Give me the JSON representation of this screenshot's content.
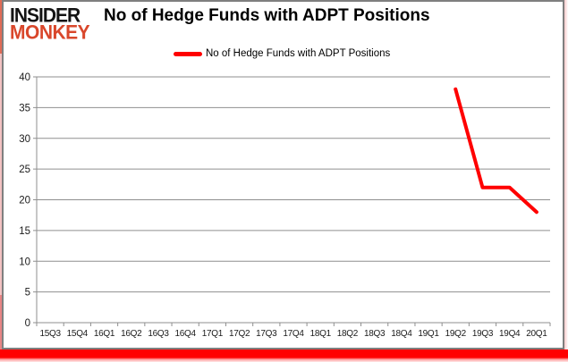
{
  "logo": {
    "line1": "INSIDER",
    "line2": "MONKEY",
    "line1_color": "#141414",
    "line2_color": "#d9472b"
  },
  "chart": {
    "title": "No of Hedge Funds with ADPT Positions",
    "legend": "No of Hedge Funds with ADPT Positions"
  },
  "chart_data": {
    "type": "line",
    "title": "No of Hedge Funds with ADPT Positions",
    "categories": [
      "15Q3",
      "15Q4",
      "16Q1",
      "16Q2",
      "16Q3",
      "16Q4",
      "17Q1",
      "17Q2",
      "17Q3",
      "17Q4",
      "18Q1",
      "18Q2",
      "18Q3",
      "18Q4",
      "19Q1",
      "19Q2",
      "19Q3",
      "19Q4",
      "20Q1"
    ],
    "series": [
      {
        "name": "No of Hedge Funds with ADPT Positions",
        "color": "#ff0000",
        "values": [
          null,
          null,
          null,
          null,
          null,
          null,
          null,
          null,
          null,
          null,
          null,
          null,
          null,
          null,
          null,
          38,
          22,
          22,
          18
        ]
      }
    ],
    "xlabel": "",
    "ylabel": "",
    "ylim": [
      0,
      40
    ],
    "ytick_step": 5,
    "grid": true,
    "grid_color": "#8f8f8f",
    "legend_position": "top"
  }
}
